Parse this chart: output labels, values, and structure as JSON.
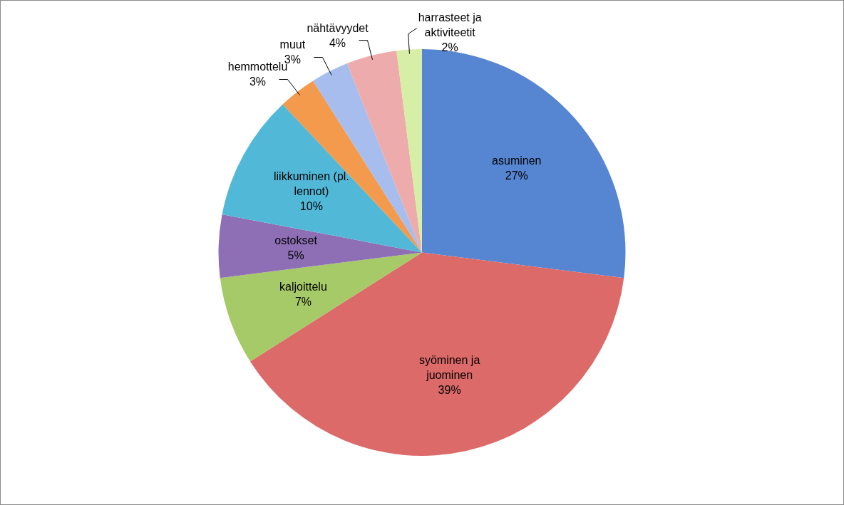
{
  "chart_data": {
    "type": "pie",
    "categories": [
      "asuminen",
      "syöminen ja juominen",
      "kaljoittelu",
      "ostokset",
      "liikkuminen (pl. lennot)",
      "hemmottelu",
      "muut",
      "nähtävyydet",
      "harrasteet ja aktiviteetit"
    ],
    "values": [
      27,
      39,
      7,
      5,
      10,
      3,
      3,
      4,
      2
    ],
    "value_labels": [
      "27%",
      "39%",
      "7%",
      "5%",
      "10%",
      "3%",
      "3%",
      "4%",
      "2%"
    ],
    "colors": [
      "#5686d2",
      "#dc6a68",
      "#a6ca68",
      "#8e6fb5",
      "#52b8d8",
      "#f49a4c",
      "#a6bdee",
      "#eeabab",
      "#d6eea6"
    ],
    "legend": false
  }
}
